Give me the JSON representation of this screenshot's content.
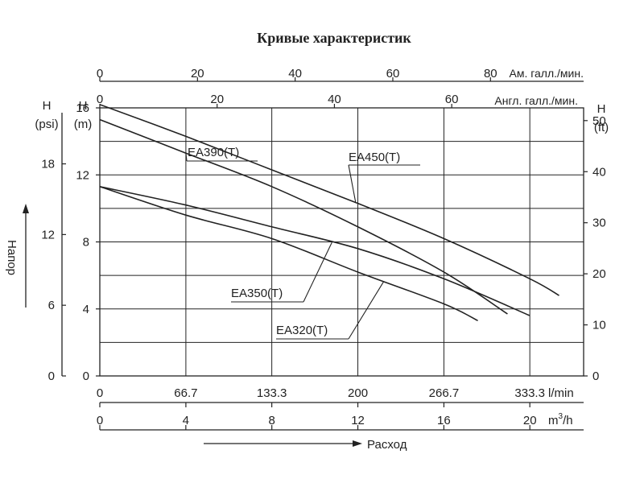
{
  "chart_data": {
    "type": "line",
    "title": "Кривые характеристик",
    "xlim": [
      0,
      375
    ],
    "ylim": [
      0,
      16
    ],
    "x_ticks_lmin": [
      "0",
      "66.7",
      "133.3",
      "200",
      "266.7",
      "333.3"
    ],
    "x_unit_lmin": "l/min",
    "x_ticks_m3h": [
      "0",
      "4",
      "8",
      "12",
      "16",
      "20"
    ],
    "x_unit_m3h": "m",
    "x_unit_m3h_sup": "3",
    "x_unit_m3h_tail": "/h",
    "x_ticks_us": [
      "0",
      "20",
      "40",
      "60",
      "80"
    ],
    "x_unit_us": "Ам. галл./мин.",
    "x_ticks_uk": [
      "0",
      "20",
      "40",
      "60"
    ],
    "x_unit_uk": "Англ. галл./мин.",
    "y_left_m_ticks": [
      "0",
      "4",
      "8",
      "12",
      "16"
    ],
    "y_left_m_unit": [
      "H",
      "(m)"
    ],
    "y_left_psi_ticks": [
      "0",
      "6",
      "12",
      "18"
    ],
    "y_left_psi_unit": [
      "H",
      "(psi)"
    ],
    "y_right_ft_ticks": [
      "0",
      "10",
      "20",
      "30",
      "40",
      "50"
    ],
    "y_right_ft_unit": [
      "H",
      "(ft)"
    ],
    "ylabel": "Напор",
    "xlabel": "Расход",
    "grid": true,
    "series": [
      {
        "name": "EA450(T)",
        "x": [
          0,
          66.7,
          133.3,
          200,
          266.7,
          333.3,
          356
        ],
        "y": [
          16.2,
          14.3,
          12.3,
          10.3,
          8.2,
          5.8,
          4.8
        ]
      },
      {
        "name": "EA390(T)",
        "x": [
          0,
          66.7,
          133.3,
          200,
          266.7,
          316
        ],
        "y": [
          15.3,
          13.3,
          11.3,
          8.9,
          6.2,
          3.7
        ]
      },
      {
        "name": "EA350(T)",
        "x": [
          0,
          66.7,
          133.3,
          200,
          266.7,
          333.3
        ],
        "y": [
          11.3,
          10.2,
          8.9,
          7.6,
          5.8,
          3.6
        ]
      },
      {
        "name": "EA320(T)",
        "x": [
          0,
          66.7,
          133.3,
          200,
          266.7,
          293
        ],
        "y": [
          11.3,
          9.6,
          8.2,
          6.2,
          4.3,
          3.3
        ]
      }
    ]
  }
}
